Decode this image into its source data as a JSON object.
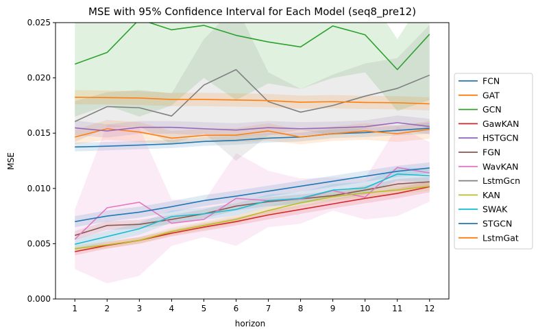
{
  "chart_data": {
    "type": "line",
    "title": "MSE with 95% Confidence Interval for Each Model (seq8_pre12)",
    "xlabel": "horizon",
    "ylabel": "MSE",
    "x": [
      1,
      2,
      3,
      4,
      5,
      6,
      7,
      8,
      9,
      10,
      11,
      12
    ],
    "xticks": [
      "1",
      "2",
      "3",
      "4",
      "5",
      "6",
      "7",
      "8",
      "9",
      "10",
      "11",
      "12"
    ],
    "xlim": [
      0.4,
      12.6
    ],
    "ylim": [
      0.0,
      0.025
    ],
    "yticks": [
      "0.000",
      "0.005",
      "0.010",
      "0.015",
      "0.020",
      "0.025"
    ],
    "yticks_values": [
      0.0,
      0.005,
      0.01,
      0.015,
      0.02,
      0.025
    ],
    "grid": false,
    "legend_position": "outside-right",
    "series": [
      {
        "name": "FCN",
        "color": "#1f77b4",
        "values": [
          0.01375,
          0.01382,
          0.01392,
          0.01403,
          0.01425,
          0.01435,
          0.01455,
          0.01465,
          0.01495,
          0.01505,
          0.01525,
          0.01545
        ],
        "lower": [
          0.01335,
          0.01345,
          0.01355,
          0.01365,
          0.01385,
          0.01395,
          0.01415,
          0.01425,
          0.01455,
          0.01465,
          0.0148,
          0.01495
        ],
        "upper": [
          0.01415,
          0.0142,
          0.0143,
          0.0144,
          0.01465,
          0.01475,
          0.01495,
          0.01505,
          0.01535,
          0.01545,
          0.0157,
          0.01595
        ]
      },
      {
        "name": "GAT",
        "color": "#ff7f0e",
        "values": [
          0.01465,
          0.0154,
          0.0151,
          0.01455,
          0.0148,
          0.01482,
          0.0152,
          0.01465,
          0.01495,
          0.0152,
          0.01495,
          0.01535
        ],
        "lower": [
          0.014,
          0.0144,
          0.0142,
          0.014,
          0.0142,
          0.0142,
          0.0143,
          0.014,
          0.0143,
          0.0144,
          0.0142,
          0.0145
        ],
        "upper": [
          0.0153,
          0.0162,
          0.016,
          0.0152,
          0.0154,
          0.01545,
          0.0159,
          0.0153,
          0.0156,
          0.0159,
          0.0157,
          0.0161
        ]
      },
      {
        "name": "GCN",
        "color": "#2ca02c",
        "values": [
          0.02125,
          0.0223,
          0.0253,
          0.02435,
          0.02475,
          0.02385,
          0.02325,
          0.0228,
          0.0247,
          0.0239,
          0.02075,
          0.02395
        ],
        "lower": [
          0.0165,
          0.0175,
          0.0165,
          0.0175,
          0.02,
          0.018,
          0.0195,
          0.019,
          0.02,
          0.0205,
          0.017,
          0.018
        ],
        "upper": [
          0.028,
          0.028,
          0.028,
          0.028,
          0.028,
          0.028,
          0.028,
          0.028,
          0.028,
          0.028,
          0.0235,
          0.028
        ]
      },
      {
        "name": "GawKAN",
        "color": "#d62728",
        "values": [
          0.00428,
          0.00485,
          0.0053,
          0.00595,
          0.0065,
          0.007,
          0.0076,
          0.0081,
          0.0086,
          0.0091,
          0.00955,
          0.01015
        ],
        "lower": [
          0.00395,
          0.00455,
          0.005,
          0.00565,
          0.00615,
          0.00665,
          0.0072,
          0.0077,
          0.0082,
          0.00865,
          0.0091,
          0.00965
        ],
        "upper": [
          0.0046,
          0.00515,
          0.0056,
          0.00625,
          0.00685,
          0.00735,
          0.008,
          0.0085,
          0.009,
          0.00955,
          0.01,
          0.01065
        ]
      },
      {
        "name": "HSTGCN",
        "color": "#9467bd",
        "values": [
          0.01548,
          0.0152,
          0.01553,
          0.01553,
          0.0154,
          0.01528,
          0.0155,
          0.0154,
          0.01548,
          0.01558,
          0.01595,
          0.0156
        ],
        "lower": [
          0.0148,
          0.0146,
          0.01495,
          0.01495,
          0.0148,
          0.0147,
          0.0149,
          0.0148,
          0.0149,
          0.015,
          0.0153,
          0.0149
        ],
        "upper": [
          0.01615,
          0.0158,
          0.0161,
          0.0161,
          0.016,
          0.0159,
          0.0161,
          0.016,
          0.01605,
          0.01615,
          0.0166,
          0.0163
        ]
      },
      {
        "name": "FGN",
        "color": "#8c564b",
        "values": [
          0.00575,
          0.00665,
          0.00675,
          0.0072,
          0.0077,
          0.0084,
          0.0088,
          0.00905,
          0.00935,
          0.00985,
          0.0104,
          0.0106
        ],
        "lower": [
          0.00535,
          0.00625,
          0.00635,
          0.0068,
          0.0073,
          0.008,
          0.0084,
          0.00865,
          0.00895,
          0.00945,
          0.00995,
          0.01015
        ],
        "upper": [
          0.00615,
          0.00705,
          0.00715,
          0.0076,
          0.0081,
          0.0088,
          0.0092,
          0.00945,
          0.00975,
          0.01025,
          0.01085,
          0.01105
        ]
      },
      {
        "name": "WavKAN",
        "color": "#e377c2",
        "values": [
          0.0054,
          0.00825,
          0.00875,
          0.00685,
          0.0072,
          0.0091,
          0.0089,
          0.00905,
          0.0098,
          0.0092,
          0.0119,
          0.0114
        ],
        "lower": [
          0.0027,
          0.0014,
          0.0021,
          0.0048,
          0.0056,
          0.0048,
          0.0065,
          0.0068,
          0.008,
          0.0072,
          0.0075,
          0.0088
        ],
        "upper": [
          0.0081,
          0.0158,
          0.0155,
          0.009,
          0.0088,
          0.0132,
          0.0116,
          0.0109,
          0.011,
          0.0109,
          0.0156,
          0.0142
        ]
      },
      {
        "name": "LstmGcn",
        "color": "#7f7f7f",
        "values": [
          0.01605,
          0.0174,
          0.0173,
          0.01655,
          0.01935,
          0.02075,
          0.01785,
          0.0169,
          0.0175,
          0.01835,
          0.01905,
          0.02025
        ],
        "lower": [
          0.0142,
          0.0155,
          0.0156,
          0.014,
          0.015,
          0.0125,
          0.0148,
          0.0153,
          0.0148,
          0.0154,
          0.016,
          0.0156
        ],
        "upper": [
          0.0179,
          0.0187,
          0.0189,
          0.0186,
          0.0235,
          0.0265,
          0.0205,
          0.019,
          0.0203,
          0.0213,
          0.0218,
          0.0248
        ]
      },
      {
        "name": "KAN",
        "color": "#bcbd22",
        "values": [
          0.00455,
          0.0049,
          0.0053,
          0.0061,
          0.00665,
          0.0072,
          0.008,
          0.0087,
          0.00925,
          0.0096,
          0.00985,
          0.0102
        ],
        "lower": [
          0.00425,
          0.0046,
          0.005,
          0.00575,
          0.0063,
          0.00685,
          0.0076,
          0.0083,
          0.00885,
          0.0092,
          0.00945,
          0.0098
        ],
        "upper": [
          0.00485,
          0.0052,
          0.0056,
          0.00645,
          0.007,
          0.00755,
          0.0084,
          0.0091,
          0.00965,
          0.01,
          0.01025,
          0.0106
        ]
      },
      {
        "name": "SWAK",
        "color": "#17becf",
        "values": [
          0.00495,
          0.00565,
          0.00635,
          0.00745,
          0.0077,
          0.0081,
          0.0089,
          0.0091,
          0.00985,
          0.01005,
          0.0113,
          0.01115
        ],
        "lower": [
          0.00445,
          0.00515,
          0.0058,
          0.0069,
          0.00715,
          0.00755,
          0.00835,
          0.00855,
          0.0093,
          0.0095,
          0.0107,
          0.0105
        ],
        "upper": [
          0.00545,
          0.00615,
          0.0069,
          0.008,
          0.00825,
          0.00865,
          0.00945,
          0.00965,
          0.0104,
          0.0106,
          0.0119,
          0.0118
        ]
      },
      {
        "name": "STGCN",
        "color": "#1f77b4",
        "values": [
          0.007,
          0.0075,
          0.00785,
          0.00835,
          0.0089,
          0.0093,
          0.00975,
          0.0102,
          0.01065,
          0.0111,
          0.01155,
          0.01185
        ],
        "lower": [
          0.0065,
          0.007,
          0.00735,
          0.00785,
          0.0084,
          0.0088,
          0.00925,
          0.0097,
          0.01015,
          0.0106,
          0.01105,
          0.01135
        ],
        "upper": [
          0.0075,
          0.008,
          0.00835,
          0.00885,
          0.0094,
          0.0098,
          0.01025,
          0.0107,
          0.01115,
          0.0116,
          0.01205,
          0.01235
        ]
      },
      {
        "name": "LstmGat",
        "color": "#ff7f0e",
        "values": [
          0.01825,
          0.01822,
          0.01818,
          0.01805,
          0.01805,
          0.018,
          0.01795,
          0.0178,
          0.01785,
          0.01778,
          0.01775,
          0.01765
        ],
        "lower": [
          0.0176,
          0.0176,
          0.01755,
          0.01745,
          0.01745,
          0.0174,
          0.01735,
          0.0172,
          0.01725,
          0.01718,
          0.01715,
          0.01705
        ],
        "upper": [
          0.0189,
          0.01885,
          0.0188,
          0.01865,
          0.01865,
          0.0186,
          0.01855,
          0.0184,
          0.01845,
          0.01838,
          0.01835,
          0.01825
        ]
      }
    ]
  }
}
